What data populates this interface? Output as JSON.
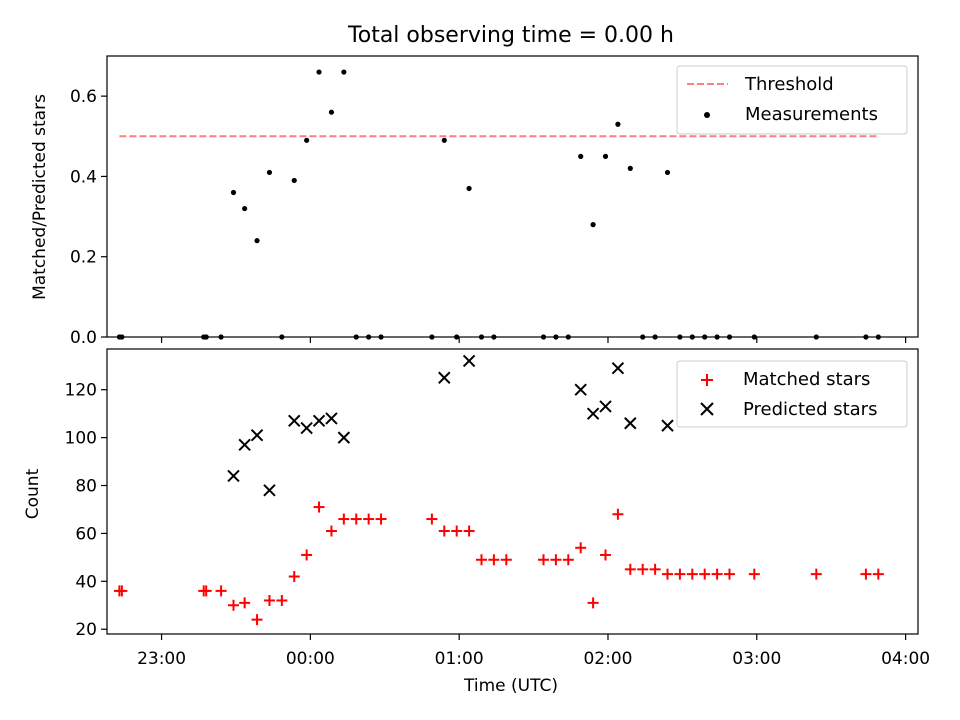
{
  "title": "Total observing time = 0.00 h",
  "chart_data": [
    {
      "type": "scatter",
      "ylabel": "Matched/Predicted stars",
      "ylim": [
        0,
        0.7
      ],
      "xlim": [
        -82,
        245
      ],
      "x_unit": "minutes from 00:00 UTC",
      "yticks": [
        0.0,
        0.2,
        0.4,
        0.6
      ],
      "ytick_labels": [
        "0.0",
        "0.2",
        "0.4",
        "0.6"
      ],
      "legend": {
        "position": "top-right",
        "entries": [
          "Threshold",
          "Measurements"
        ]
      },
      "threshold": {
        "name": "Threshold",
        "value": 0.5,
        "x_range": [
          -77,
          229
        ],
        "color": "#ff7f7f"
      },
      "series": [
        {
          "name": "Measurements",
          "color": "#000000",
          "points": [
            [
              -77,
              0
            ],
            [
              -76,
              0
            ],
            [
              -43,
              0
            ],
            [
              -42,
              0
            ],
            [
              -36,
              0
            ],
            [
              -31,
              0.36
            ],
            [
              -26.5,
              0.32
            ],
            [
              -21.5,
              0.24
            ],
            [
              -16.5,
              0.41
            ],
            [
              -11.5,
              0
            ],
            [
              -6.5,
              0.39
            ],
            [
              -1.5,
              0.49
            ],
            [
              3.5,
              0.66
            ],
            [
              8.5,
              0.56
            ],
            [
              13.5,
              0.66
            ],
            [
              18.5,
              0
            ],
            [
              23.5,
              0
            ],
            [
              28.5,
              0
            ],
            [
              49,
              0
            ],
            [
              54,
              0.49
            ],
            [
              59,
              0
            ],
            [
              64,
              0.37
            ],
            [
              69,
              0
            ],
            [
              74,
              0
            ],
            [
              94,
              0
            ],
            [
              99,
              0
            ],
            [
              104,
              0
            ],
            [
              109,
              0.45
            ],
            [
              114,
              0.28
            ],
            [
              119,
              0.45
            ],
            [
              124,
              0.53
            ],
            [
              129,
              0.42
            ],
            [
              134,
              0
            ],
            [
              139,
              0
            ],
            [
              144,
              0.41
            ],
            [
              149,
              0
            ],
            [
              154,
              0
            ],
            [
              159,
              0
            ],
            [
              164,
              0
            ],
            [
              169,
              0
            ],
            [
              179,
              0
            ],
            [
              204,
              0
            ],
            [
              224,
              0
            ],
            [
              229,
              0
            ]
          ]
        }
      ]
    },
    {
      "type": "scatter",
      "ylabel": "Count",
      "xlabel": "Time (UTC)",
      "ylim": [
        18,
        137
      ],
      "xlim": [
        -82,
        245
      ],
      "x_unit": "minutes from 00:00 UTC",
      "yticks": [
        20,
        40,
        60,
        80,
        100,
        120
      ],
      "ytick_labels": [
        "20",
        "40",
        "60",
        "80",
        "100",
        "120"
      ],
      "xticks": [
        -60,
        0,
        60,
        120,
        180,
        240
      ],
      "xtick_labels": [
        "23:00",
        "00:00",
        "01:00",
        "02:00",
        "03:00",
        "04:00"
      ],
      "legend": {
        "position": "top-right",
        "entries": [
          "Matched stars",
          "Predicted stars"
        ]
      },
      "series": [
        {
          "name": "Matched stars",
          "marker": "plus",
          "color": "#ff0000",
          "points": [
            [
              -77,
              36
            ],
            [
              -76,
              36
            ],
            [
              -43,
              36
            ],
            [
              -42,
              36
            ],
            [
              -36,
              36
            ],
            [
              -31,
              30
            ],
            [
              -26.5,
              31
            ],
            [
              -21.5,
              24
            ],
            [
              -16.5,
              32
            ],
            [
              -11.5,
              32
            ],
            [
              -6.5,
              42
            ],
            [
              -1.5,
              51
            ],
            [
              3.5,
              71
            ],
            [
              8.5,
              61
            ],
            [
              13.5,
              66
            ],
            [
              18.5,
              66
            ],
            [
              23.5,
              66
            ],
            [
              28.5,
              66
            ],
            [
              49,
              66
            ],
            [
              54,
              61
            ],
            [
              59,
              61
            ],
            [
              64,
              61
            ],
            [
              69,
              49
            ],
            [
              74,
              49
            ],
            [
              79,
              49
            ],
            [
              94,
              49
            ],
            [
              99,
              49
            ],
            [
              104,
              49
            ],
            [
              109,
              54
            ],
            [
              114,
              31
            ],
            [
              119,
              51
            ],
            [
              124,
              68
            ],
            [
              129,
              45
            ],
            [
              134,
              45
            ],
            [
              139,
              45
            ],
            [
              144,
              43
            ],
            [
              149,
              43
            ],
            [
              154,
              43
            ],
            [
              159,
              43
            ],
            [
              164,
              43
            ],
            [
              169,
              43
            ],
            [
              179,
              43
            ],
            [
              204,
              43
            ],
            [
              224,
              43
            ],
            [
              229,
              43
            ]
          ]
        },
        {
          "name": "Predicted stars",
          "marker": "x",
          "color": "#000000",
          "points": [
            [
              -31,
              84
            ],
            [
              -26.5,
              97
            ],
            [
              -21.5,
              101
            ],
            [
              -16.5,
              78
            ],
            [
              -6.5,
              107
            ],
            [
              -1.5,
              104
            ],
            [
              3.5,
              107
            ],
            [
              8.5,
              108
            ],
            [
              13.5,
              100
            ],
            [
              54,
              125
            ],
            [
              64,
              132
            ],
            [
              109,
              120
            ],
            [
              114,
              110
            ],
            [
              119,
              113
            ],
            [
              124,
              129
            ],
            [
              129,
              106
            ],
            [
              144,
              105
            ]
          ]
        }
      ]
    }
  ]
}
